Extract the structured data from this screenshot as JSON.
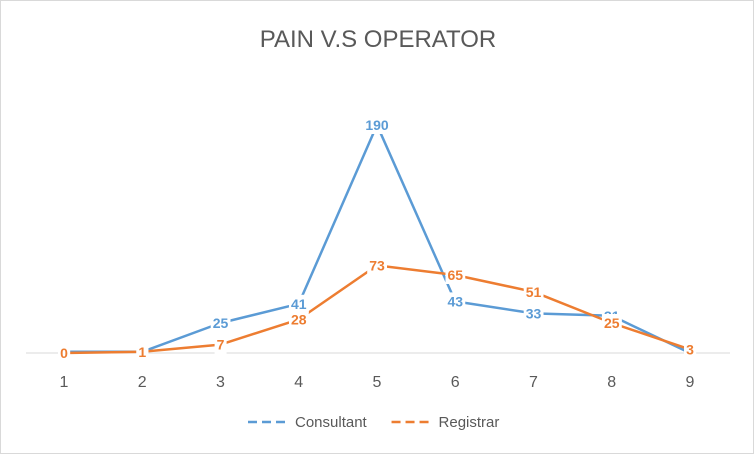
{
  "chart_data": {
    "type": "line",
    "title": "PAIN V.S OPERATOR",
    "xlabel": "",
    "ylabel": "",
    "categories": [
      "1",
      "2",
      "3",
      "4",
      "5",
      "6",
      "7",
      "8",
      "9"
    ],
    "ylim": [
      0,
      200
    ],
    "grid": false,
    "legend_position": "bottom",
    "series": [
      {
        "name": "Consultant",
        "color": "#5B9BD5",
        "values": [
          1,
          1,
          25,
          41,
          190,
          43,
          33,
          31,
          0
        ]
      },
      {
        "name": "Registrar",
        "color": "#ED7D31",
        "values": [
          0,
          1,
          7,
          28,
          73,
          65,
          51,
          25,
          3
        ]
      }
    ]
  }
}
